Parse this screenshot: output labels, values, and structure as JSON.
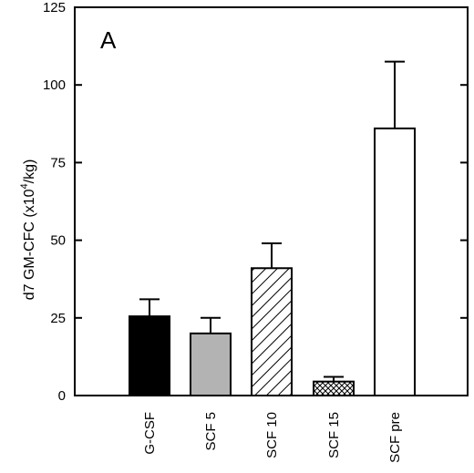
{
  "chart_data": {
    "type": "bar",
    "panel_label": "A",
    "title": "",
    "xlabel": "",
    "ylabel_main": "d7 GM-CFC (x10",
    "ylabel_sup": "4",
    "ylabel_tail": "/kg)",
    "ylim": [
      0,
      125
    ],
    "yticks": [
      0,
      25,
      50,
      75,
      100,
      125
    ],
    "grid": false,
    "categories": [
      "G-CSF",
      "SCF 5",
      "SCF 10",
      "SCF 15",
      "SCF pre"
    ],
    "values": [
      25.5,
      20,
      41,
      4.5,
      86
    ],
    "errors": [
      5.5,
      5,
      8,
      1.5,
      21.5
    ],
    "fills": [
      "solid-black",
      "gray",
      "diagonal-hatch",
      "crosshatch",
      "white"
    ],
    "colors": {
      "solid-black": "#000000",
      "gray": "#b3b3b3",
      "white": "#ffffff",
      "axis": "#000000"
    }
  }
}
